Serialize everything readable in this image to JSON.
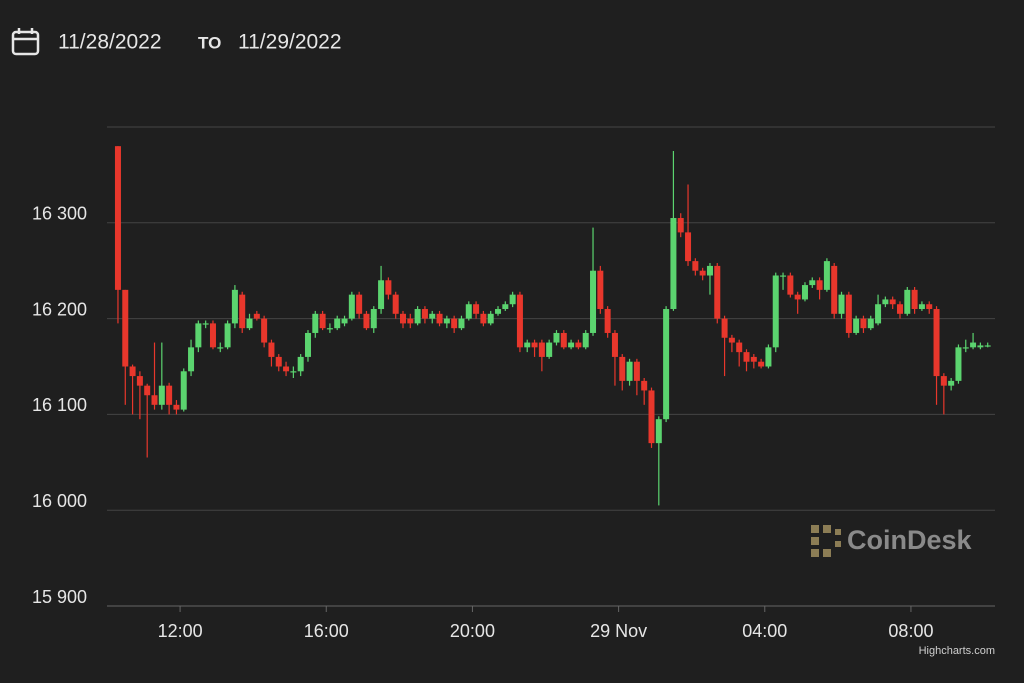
{
  "header": {
    "from": "11/28/2022",
    "to_word": "TO",
    "to": "11/29/2022"
  },
  "chart_data": {
    "type": "candlestick",
    "x": [
      10.3,
      10.5,
      10.7,
      10.9,
      11.1,
      11.3,
      11.5,
      11.7,
      11.9,
      12.1,
      12.3,
      12.5,
      12.7,
      12.9,
      13.1,
      13.3,
      13.5,
      13.7,
      13.9,
      14.1,
      14.3,
      14.5,
      14.7,
      14.9,
      15.1,
      15.3,
      15.5,
      15.7,
      15.9,
      16.1,
      16.3,
      16.5,
      16.7,
      16.9,
      17.1,
      17.3,
      17.5,
      17.7,
      17.9,
      18.1,
      18.3,
      18.5,
      18.7,
      18.9,
      19.1,
      19.3,
      19.5,
      19.7,
      19.9,
      20.1,
      20.3,
      20.5,
      20.7,
      20.9,
      21.1,
      21.3,
      21.5,
      21.7,
      21.9,
      22.1,
      22.3,
      22.5,
      22.7,
      22.9,
      23.1,
      23.3,
      23.5,
      23.7,
      23.9,
      24.1,
      24.3,
      24.5,
      24.7,
      24.9,
      25.1,
      25.3,
      25.5,
      25.7,
      25.9,
      26.1,
      26.3,
      26.5,
      26.7,
      26.9,
      27.1,
      27.3,
      27.5,
      27.7,
      27.9,
      28.1,
      28.3,
      28.5,
      28.7,
      28.9,
      29.1,
      29.3,
      29.5,
      29.7,
      29.9,
      30.1,
      30.3,
      30.5,
      30.7,
      30.9,
      31.1,
      31.3,
      31.5,
      31.7,
      31.9,
      32.1,
      32.3,
      32.5,
      32.7,
      32.9,
      33.1,
      33.3,
      33.5,
      33.7,
      33.9,
      34.1
    ],
    "open": [
      16380,
      16230,
      16150,
      16140,
      16130,
      16120,
      16110,
      16130,
      16110,
      16105,
      16145,
      16170,
      16195,
      16195,
      16170,
      16170,
      16195,
      16225,
      16190,
      16205,
      16200,
      16175,
      16160,
      16150,
      16145,
      16145,
      16160,
      16185,
      16205,
      16190,
      16190,
      16195,
      16200,
      16225,
      16205,
      16190,
      16210,
      16240,
      16225,
      16205,
      16200,
      16195,
      16210,
      16200,
      16205,
      16195,
      16200,
      16190,
      16200,
      16215,
      16205,
      16195,
      16205,
      16210,
      16215,
      16225,
      16170,
      16175,
      16175,
      16160,
      16175,
      16185,
      16170,
      16175,
      16170,
      16185,
      16250,
      16210,
      16185,
      16160,
      16135,
      16155,
      16135,
      16125,
      16070,
      16095,
      16210,
      16305,
      16290,
      16260,
      16250,
      16245,
      16255,
      16200,
      16180,
      16175,
      16165,
      16160,
      16155,
      16150,
      16170,
      16245,
      16245,
      16225,
      16220,
      16235,
      16240,
      16230,
      16255,
      16205,
      16225,
      16185,
      16200,
      16190,
      16195,
      16215,
      16220,
      16215,
      16205,
      16230,
      16210,
      16215,
      16210,
      16140,
      16130,
      16135,
      16170,
      16170,
      16170,
      16172
    ],
    "high": [
      16380,
      16230,
      16152,
      16145,
      16132,
      16175,
      16175,
      16133,
      16115,
      16148,
      16178,
      16198,
      16198,
      16198,
      16175,
      16198,
      16235,
      16228,
      16205,
      16208,
      16203,
      16178,
      16163,
      16155,
      16150,
      16163,
      16188,
      16208,
      16208,
      16195,
      16203,
      16203,
      16228,
      16228,
      16208,
      16213,
      16255,
      16243,
      16228,
      16208,
      16205,
      16213,
      16213,
      16208,
      16208,
      16203,
      16203,
      16203,
      16218,
      16218,
      16208,
      16208,
      16213,
      16218,
      16228,
      16228,
      16178,
      16178,
      16178,
      16178,
      16188,
      16188,
      16178,
      16178,
      16188,
      16295,
      16255,
      16213,
      16188,
      16163,
      16158,
      16158,
      16138,
      16128,
      16098,
      16213,
      16375,
      16310,
      16340,
      16263,
      16253,
      16258,
      16258,
      16203,
      16183,
      16178,
      16168,
      16163,
      16158,
      16173,
      16248,
      16248,
      16248,
      16228,
      16238,
      16243,
      16243,
      16263,
      16258,
      16228,
      16228,
      16203,
      16203,
      16203,
      16225,
      16223,
      16223,
      16218,
      16233,
      16233,
      16218,
      16218,
      16213,
      16143,
      16138,
      16173,
      16178,
      16185,
      16175,
      16175
    ],
    "low": [
      16195,
      16110,
      16100,
      16095,
      16055,
      16105,
      16105,
      16100,
      16100,
      16103,
      16140,
      16165,
      16190,
      16168,
      16165,
      16168,
      16190,
      16185,
      16188,
      16198,
      16170,
      16150,
      16145,
      16140,
      16138,
      16140,
      16155,
      16180,
      16188,
      16185,
      16188,
      16192,
      16198,
      16200,
      16188,
      16185,
      16205,
      16220,
      16200,
      16190,
      16190,
      16193,
      16195,
      16195,
      16192,
      16190,
      16185,
      16188,
      16198,
      16200,
      16192,
      16193,
      16203,
      16208,
      16212,
      16165,
      16165,
      16160,
      16145,
      16158,
      16172,
      16168,
      16168,
      16168,
      16168,
      16182,
      16205,
      16180,
      16130,
      16125,
      16130,
      16120,
      16110,
      16065,
      16005,
      16092,
      16208,
      16285,
      16255,
      16245,
      16240,
      16225,
      16195,
      16140,
      16165,
      16150,
      16145,
      16148,
      16148,
      16148,
      16165,
      16230,
      16222,
      16205,
      16218,
      16232,
      16220,
      16228,
      16200,
      16200,
      16180,
      16183,
      16185,
      16188,
      16193,
      16212,
      16210,
      16200,
      16203,
      16205,
      16208,
      16205,
      16110,
      16100,
      16125,
      16132,
      16165,
      16168,
      16168,
      16170
    ],
    "close": [
      16230,
      16150,
      16140,
      16130,
      16120,
      16110,
      16130,
      16110,
      16105,
      16145,
      16170,
      16195,
      16195,
      16170,
      16170,
      16195,
      16230,
      16190,
      16200,
      16200,
      16175,
      16160,
      16150,
      16145,
      16145,
      16160,
      16185,
      16205,
      16190,
      16190,
      16200,
      16200,
      16225,
      16205,
      16190,
      16210,
      16240,
      16225,
      16205,
      16195,
      16195,
      16210,
      16200,
      16205,
      16195,
      16200,
      16190,
      16200,
      16215,
      16205,
      16195,
      16205,
      16210,
      16215,
      16225,
      16170,
      16175,
      16170,
      16160,
      16175,
      16185,
      16170,
      16175,
      16170,
      16185,
      16250,
      16210,
      16185,
      16160,
      16135,
      16155,
      16135,
      16125,
      16070,
      16095,
      16210,
      16305,
      16290,
      16260,
      16250,
      16245,
      16255,
      16200,
      16180,
      16175,
      16165,
      16155,
      16155,
      16150,
      16170,
      16245,
      16245,
      16225,
      16220,
      16235,
      16240,
      16230,
      16260,
      16205,
      16225,
      16185,
      16200,
      16190,
      16200,
      16215,
      16220,
      16215,
      16205,
      16230,
      16210,
      16215,
      16210,
      16140,
      16130,
      16135,
      16170,
      16170,
      16175,
      16172,
      16172
    ],
    "up_color": "#5bd46f",
    "down_color": "#e8372c",
    "xlim": [
      10.0,
      34.3
    ],
    "xticks": [
      {
        "value": 12,
        "label": "12:00"
      },
      {
        "value": 16,
        "label": "16:00"
      },
      {
        "value": 20,
        "label": "20:00"
      },
      {
        "value": 24,
        "label": "29 Nov"
      },
      {
        "value": 28,
        "label": "04:00"
      },
      {
        "value": 32,
        "label": "08:00"
      }
    ],
    "ylim": [
      15900,
      16400
    ],
    "yticks": [
      {
        "value": 15900,
        "label": "15 900"
      },
      {
        "value": 16000,
        "label": "16 000"
      },
      {
        "value": 16100,
        "label": "16 100"
      },
      {
        "value": 16200,
        "label": "16 200"
      },
      {
        "value": 16300,
        "label": "16 300"
      }
    ],
    "grid": true,
    "watermark": "CoinDesk",
    "credit": "Highcharts.com"
  }
}
